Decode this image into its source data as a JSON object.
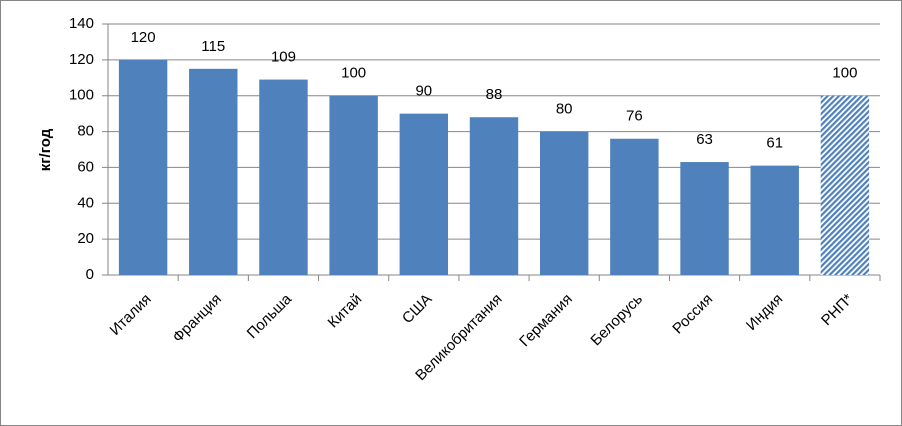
{
  "chart_data": {
    "type": "bar",
    "y_label": "кг/год",
    "categories": [
      "Италия",
      "Франция",
      "Польша",
      "Китай",
      "США",
      "Великобритания",
      "Германия",
      "Белорусь",
      "Россия",
      "Индия",
      "РНП*"
    ],
    "values": [
      120,
      115,
      109,
      100,
      90,
      88,
      80,
      76,
      63,
      61,
      100
    ],
    "color": "#4f81bd",
    "bar_styles": [
      "solid",
      "solid",
      "solid",
      "solid",
      "solid",
      "solid",
      "solid",
      "solid",
      "solid",
      "solid",
      "hatched"
    ],
    "ylim": [
      0,
      140
    ],
    "yticks": [
      0,
      20,
      40,
      60,
      80,
      100,
      120,
      140
    ],
    "grid": true
  }
}
